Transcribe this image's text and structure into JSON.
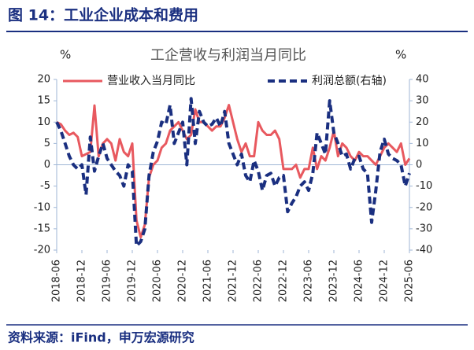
{
  "header": "图 14：工业企业成本和费用",
  "source": "资料来源：iFind，申万宏源研究",
  "chart_data": {
    "type": "line",
    "title": "工企营收与利润当月同比",
    "y_unit": "%",
    "y2_unit": "%",
    "categories": [
      "2018-06",
      null,
      null,
      null,
      null,
      null,
      "2018-12",
      null,
      null,
      null,
      null,
      null,
      "2019-06",
      null,
      null,
      null,
      null,
      null,
      "2019-12",
      null,
      null,
      null,
      null,
      null,
      "2020-06",
      null,
      null,
      null,
      null,
      null,
      "2020-12",
      null,
      null,
      null,
      null,
      null,
      "2021-06",
      null,
      null,
      null,
      null,
      null,
      "2021-12",
      null,
      null,
      null,
      null,
      null,
      "2022-06",
      null,
      null,
      null,
      null,
      null,
      "2022-12",
      null,
      null,
      null,
      null,
      null,
      "2023-06",
      null,
      null,
      null,
      null,
      null,
      "2023-12",
      null,
      null,
      null,
      null,
      null,
      "2024-06",
      null,
      null,
      null,
      null,
      null,
      "2024-12",
      null,
      null,
      null,
      null,
      null,
      "2025-06"
    ],
    "series": [
      {
        "name": "营业收入当月同比",
        "color": "#e8595f",
        "dash": false,
        "values": [
          10,
          9.5,
          8,
          7,
          7.5,
          6.5,
          2,
          2.5,
          3,
          13.9,
          2,
          5,
          6,
          5,
          1,
          6,
          3,
          2,
          5,
          -13,
          -17,
          -14,
          -3,
          0,
          1,
          4,
          5,
          8,
          9,
          10,
          8,
          6,
          7,
          13,
          10,
          10,
          9,
          8,
          9,
          9,
          11,
          14,
          10,
          6,
          3,
          5,
          2,
          2,
          10,
          8,
          7,
          7,
          8,
          6,
          -1,
          -1,
          -1,
          0,
          -3,
          -1,
          -1,
          4,
          -1,
          2,
          1,
          4,
          8,
          2,
          5,
          4,
          2,
          1,
          3,
          2,
          2,
          1,
          0,
          2,
          4,
          5,
          4,
          3,
          5,
          0,
          1.5
        ]
      },
      {
        "name": "利润总额(右轴)",
        "color": "#1a2f80",
        "dash": true,
        "axis": "y2",
        "values": [
          20,
          16,
          10,
          4,
          0,
          -2,
          0,
          -14,
          13,
          -3,
          4,
          10,
          3,
          0,
          -3,
          -5,
          -10,
          0,
          -3,
          -38,
          -36,
          -30,
          -5,
          6,
          11,
          20,
          19,
          28,
          10,
          15,
          20,
          0,
          31,
          10,
          25,
          20,
          18,
          19,
          22,
          18,
          25,
          10,
          5,
          0,
          5,
          -5,
          -8,
          2,
          -3,
          -12,
          -5,
          -4,
          -10,
          -6,
          -5,
          -22,
          -18,
          -15,
          -10,
          -8,
          -12,
          -4,
          15,
          10,
          5,
          30,
          15,
          10,
          4,
          5,
          -2,
          3,
          4,
          -2,
          -4,
          -27,
          -12,
          6,
          12,
          5,
          3,
          2,
          0,
          -10,
          -4
        ]
      }
    ],
    "ylim": [
      -20,
      20
    ],
    "yticks": [
      -20,
      -15,
      -10,
      -5,
      0,
      5,
      10,
      15,
      20
    ],
    "y2lim": [
      -40,
      40
    ],
    "y2ticks": [
      -40,
      -30,
      -20,
      -10,
      0,
      10,
      20,
      30,
      40
    ],
    "grid": false
  }
}
